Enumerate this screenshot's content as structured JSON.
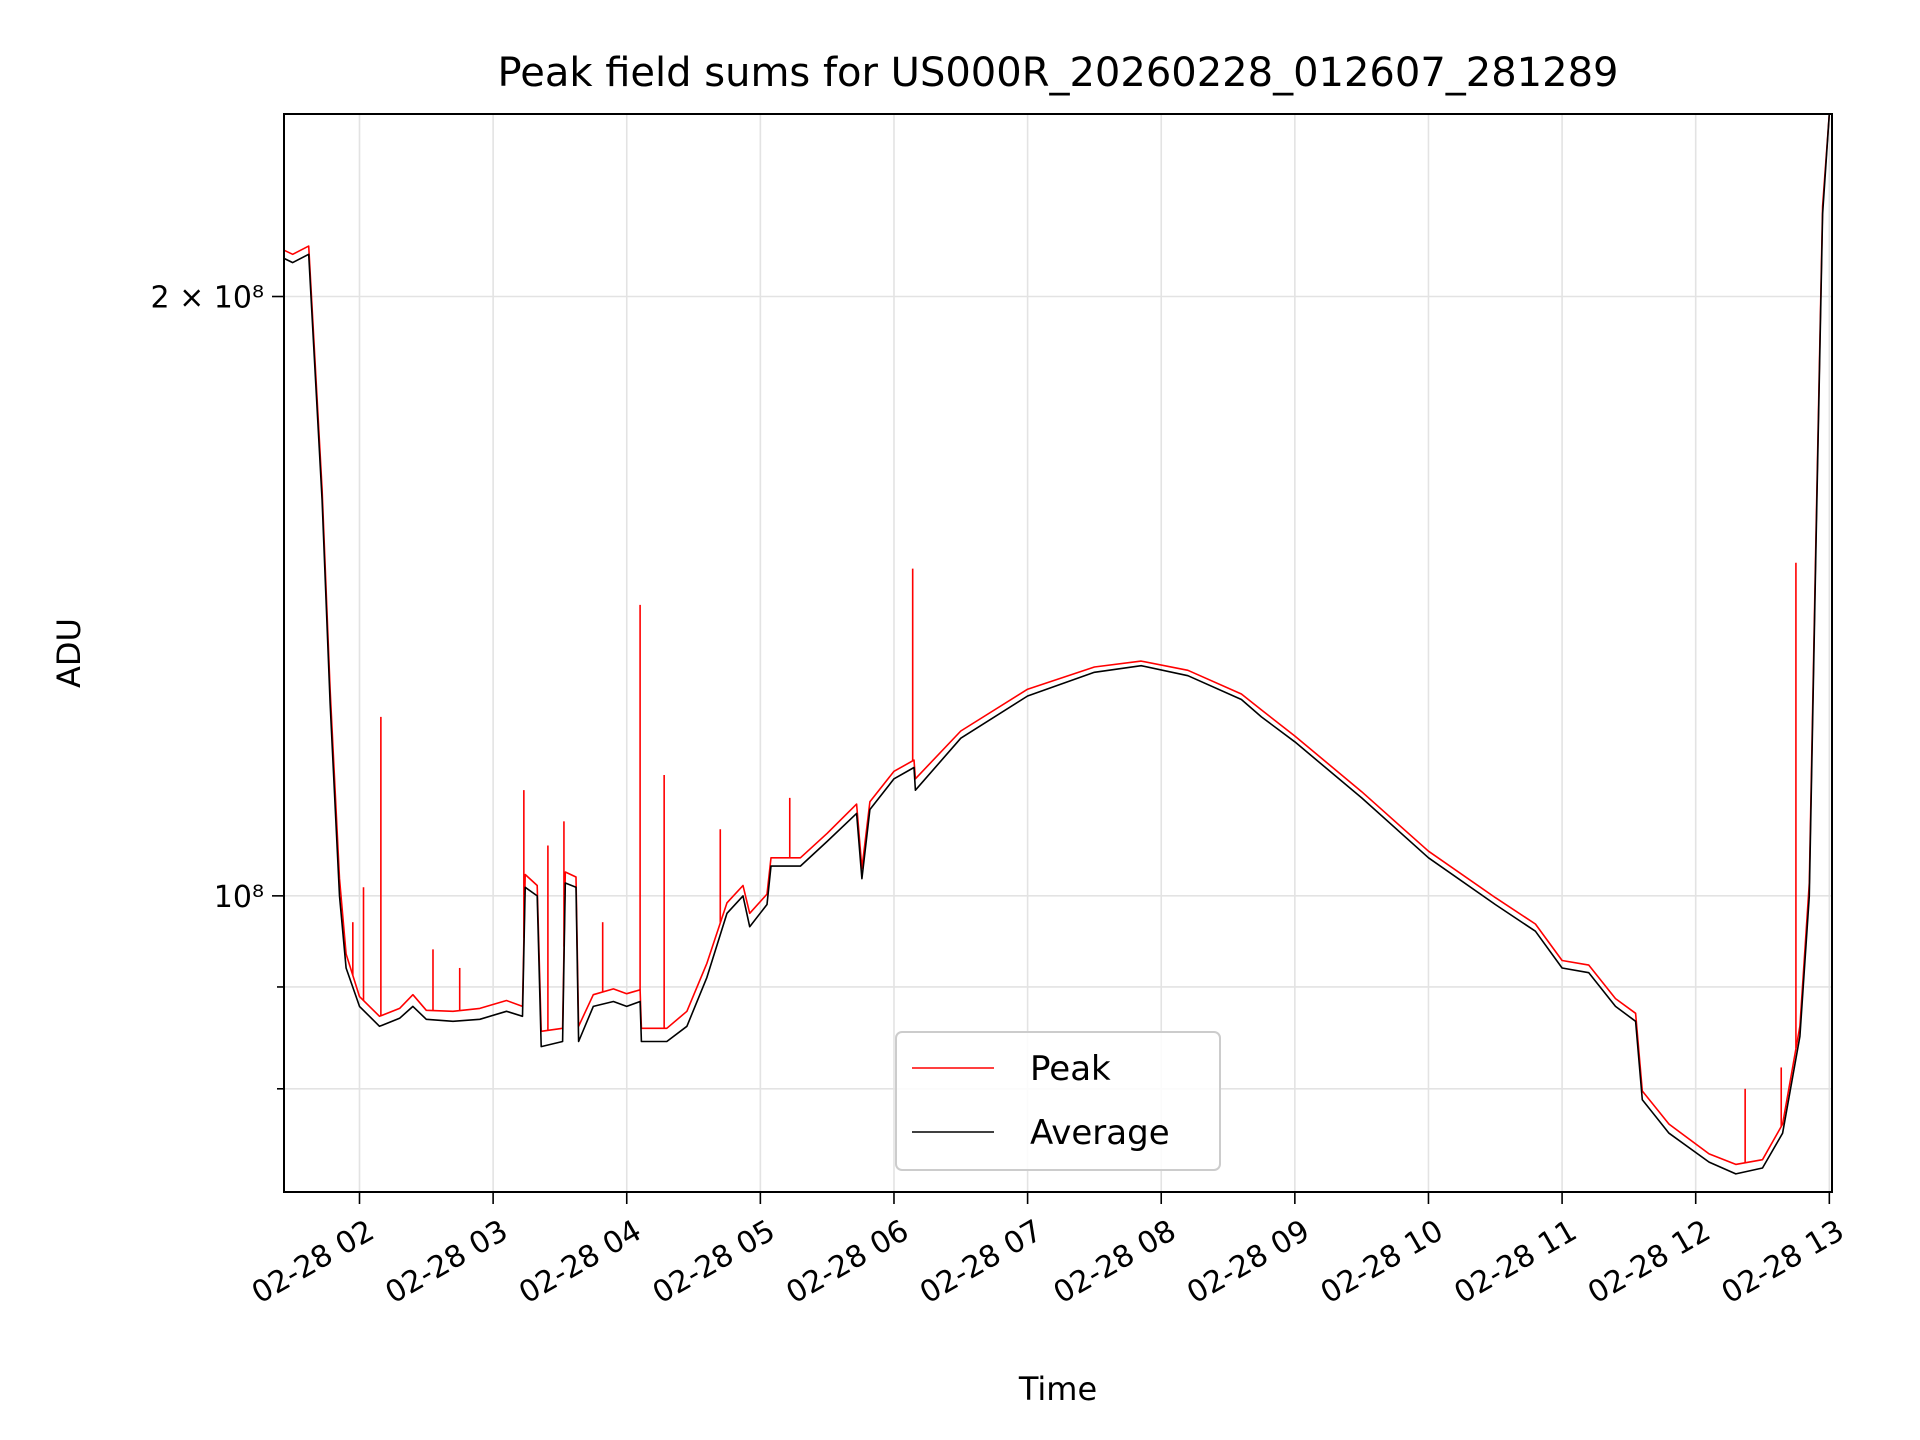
{
  "chart_data": {
    "type": "line",
    "title": "Peak field sums for US000R_20260228_012607_281289",
    "xlabel": "Time",
    "ylabel": "ADU",
    "y_scale": "log",
    "x_unit": "hours of 2026-02-28",
    "xlim": [
      1.435,
      13.02
    ],
    "ylim": [
      71000000,
      247000000
    ],
    "grid": true,
    "legend_position": "lower-center",
    "x_ticks": [
      {
        "label": "02-28 02",
        "x": 2
      },
      {
        "label": "02-28 03",
        "x": 3
      },
      {
        "label": "02-28 04",
        "x": 4
      },
      {
        "label": "02-28 05",
        "x": 5
      },
      {
        "label": "02-28 06",
        "x": 6
      },
      {
        "label": "02-28 07",
        "x": 7
      },
      {
        "label": "02-28 08",
        "x": 8
      },
      {
        "label": "02-28 09",
        "x": 9
      },
      {
        "label": "02-28 10",
        "x": 10
      },
      {
        "label": "02-28 11",
        "x": 11
      },
      {
        "label": "02-28 12",
        "x": 12
      },
      {
        "label": "02-28 13",
        "x": 13
      }
    ],
    "y_ticks": [
      {
        "label": "2 × 10⁸",
        "value": 200000000
      },
      {
        "label": "10⁸",
        "value": 100000000
      }
    ],
    "y_minor_ticks": [
      80000000,
      90000000
    ],
    "series": [
      {
        "name": "Average",
        "color": "#000000",
        "points": [
          [
            1.435,
            209000000
          ],
          [
            1.5,
            208000000
          ],
          [
            1.62,
            210000000
          ],
          [
            1.72,
            158000000
          ],
          [
            1.78,
            125000000
          ],
          [
            1.85,
            100000000
          ],
          [
            1.9,
            92000000
          ],
          [
            2.0,
            88000000
          ],
          [
            2.15,
            86000000
          ],
          [
            2.3,
            86800000
          ],
          [
            2.4,
            88000000
          ],
          [
            2.5,
            86700000
          ],
          [
            2.7,
            86500000
          ],
          [
            2.9,
            86700000
          ],
          [
            3.1,
            87500000
          ],
          [
            3.22,
            87000000
          ],
          [
            3.24,
            101000000
          ],
          [
            3.33,
            100000000
          ],
          [
            3.36,
            84000000
          ],
          [
            3.52,
            84500000
          ],
          [
            3.54,
            101500000
          ],
          [
            3.62,
            101000000
          ],
          [
            3.64,
            84500000
          ],
          [
            3.75,
            88000000
          ],
          [
            3.9,
            88500000
          ],
          [
            4.0,
            88000000
          ],
          [
            4.1,
            88500000
          ],
          [
            4.11,
            84500000
          ],
          [
            4.3,
            84500000
          ],
          [
            4.45,
            86000000
          ],
          [
            4.6,
            91000000
          ],
          [
            4.75,
            98000000
          ],
          [
            4.87,
            100000000
          ],
          [
            4.92,
            96500000
          ],
          [
            5.05,
            99000000
          ],
          [
            5.08,
            103500000
          ],
          [
            5.3,
            103500000
          ],
          [
            5.5,
            106500000
          ],
          [
            5.72,
            110000000
          ],
          [
            5.76,
            102000000
          ],
          [
            5.82,
            110500000
          ],
          [
            6.0,
            114500000
          ],
          [
            6.15,
            116000000
          ],
          [
            6.16,
            113000000
          ],
          [
            6.5,
            120000000
          ],
          [
            7.0,
            126000000
          ],
          [
            7.5,
            129500000
          ],
          [
            7.85,
            130500000
          ],
          [
            8.2,
            129000000
          ],
          [
            8.6,
            125500000
          ],
          [
            8.75,
            123000000
          ],
          [
            9.0,
            119500000
          ],
          [
            9.5,
            112000000
          ],
          [
            10.0,
            104500000
          ],
          [
            10.5,
            99000000
          ],
          [
            10.8,
            96000000
          ],
          [
            11.0,
            92000000
          ],
          [
            11.2,
            91500000
          ],
          [
            11.4,
            88000000
          ],
          [
            11.55,
            86500000
          ],
          [
            11.6,
            79000000
          ],
          [
            11.8,
            76000000
          ],
          [
            12.1,
            73500000
          ],
          [
            12.3,
            72500000
          ],
          [
            12.5,
            73000000
          ],
          [
            12.65,
            76000000
          ],
          [
            12.78,
            85000000
          ],
          [
            12.85,
            100000000
          ],
          [
            12.9,
            150000000
          ],
          [
            12.95,
            220000000
          ],
          [
            13.0,
            247000000
          ]
        ]
      },
      {
        "name": "Peak",
        "color": "#ff0000",
        "points": [
          [
            1.435,
            211000000
          ],
          [
            1.5,
            210000000
          ],
          [
            1.62,
            212000000
          ],
          [
            1.72,
            160000000
          ],
          [
            1.78,
            127000000
          ],
          [
            1.85,
            102000000
          ],
          [
            1.9,
            93500000
          ],
          [
            2.0,
            89000000
          ],
          [
            2.15,
            87000000
          ],
          [
            2.3,
            87800000
          ],
          [
            2.4,
            89200000
          ],
          [
            2.5,
            87600000
          ],
          [
            2.7,
            87500000
          ],
          [
            2.9,
            87800000
          ],
          [
            3.1,
            88600000
          ],
          [
            3.22,
            88000000
          ],
          [
            3.24,
            102500000
          ],
          [
            3.33,
            101200000
          ],
          [
            3.36,
            85500000
          ],
          [
            3.52,
            85800000
          ],
          [
            3.54,
            102800000
          ],
          [
            3.62,
            102200000
          ],
          [
            3.64,
            86000000
          ],
          [
            3.75,
            89200000
          ],
          [
            3.9,
            89800000
          ],
          [
            4.0,
            89300000
          ],
          [
            4.1,
            89700000
          ],
          [
            4.11,
            85800000
          ],
          [
            4.3,
            85800000
          ],
          [
            4.45,
            87500000
          ],
          [
            4.6,
            92500000
          ],
          [
            4.75,
            99200000
          ],
          [
            4.87,
            101200000
          ],
          [
            4.92,
            98000000
          ],
          [
            5.05,
            100200000
          ],
          [
            5.08,
            104500000
          ],
          [
            5.3,
            104500000
          ],
          [
            5.5,
            107500000
          ],
          [
            5.72,
            111200000
          ],
          [
            5.76,
            103200000
          ],
          [
            5.82,
            111500000
          ],
          [
            6.0,
            115500000
          ],
          [
            6.15,
            117000000
          ],
          [
            6.16,
            114500000
          ],
          [
            6.5,
            121000000
          ],
          [
            7.0,
            127000000
          ],
          [
            7.5,
            130300000
          ],
          [
            7.85,
            131200000
          ],
          [
            8.2,
            129800000
          ],
          [
            8.6,
            126300000
          ],
          [
            8.75,
            124000000
          ],
          [
            9.0,
            120300000
          ],
          [
            9.5,
            112800000
          ],
          [
            10.0,
            105300000
          ],
          [
            10.5,
            99800000
          ],
          [
            10.8,
            96800000
          ],
          [
            11.0,
            92800000
          ],
          [
            11.2,
            92300000
          ],
          [
            11.4,
            88800000
          ],
          [
            11.55,
            87300000
          ],
          [
            11.6,
            79800000
          ],
          [
            11.8,
            76800000
          ],
          [
            12.1,
            74200000
          ],
          [
            12.3,
            73300000
          ],
          [
            12.5,
            73700000
          ],
          [
            12.65,
            76800000
          ],
          [
            12.78,
            86000000
          ],
          [
            12.85,
            101500000
          ],
          [
            12.9,
            152000000
          ],
          [
            12.95,
            222000000
          ],
          [
            13.0,
            247000000
          ]
        ],
        "spikes": [
          [
            2.16,
            123000000
          ],
          [
            2.03,
            101000000
          ],
          [
            1.95,
            97000000
          ],
          [
            2.55,
            94000000
          ],
          [
            2.75,
            92000000
          ],
          [
            3.23,
            113000000
          ],
          [
            3.41,
            106000000
          ],
          [
            3.53,
            109000000
          ],
          [
            3.82,
            97000000
          ],
          [
            4.1,
            140000000
          ],
          [
            4.28,
            115000000
          ],
          [
            4.7,
            108000000
          ],
          [
            5.22,
            112000000
          ],
          [
            6.14,
            146000000
          ],
          [
            12.75,
            147000000
          ],
          [
            12.37,
            80000000
          ],
          [
            12.64,
            82000000
          ]
        ]
      }
    ]
  }
}
